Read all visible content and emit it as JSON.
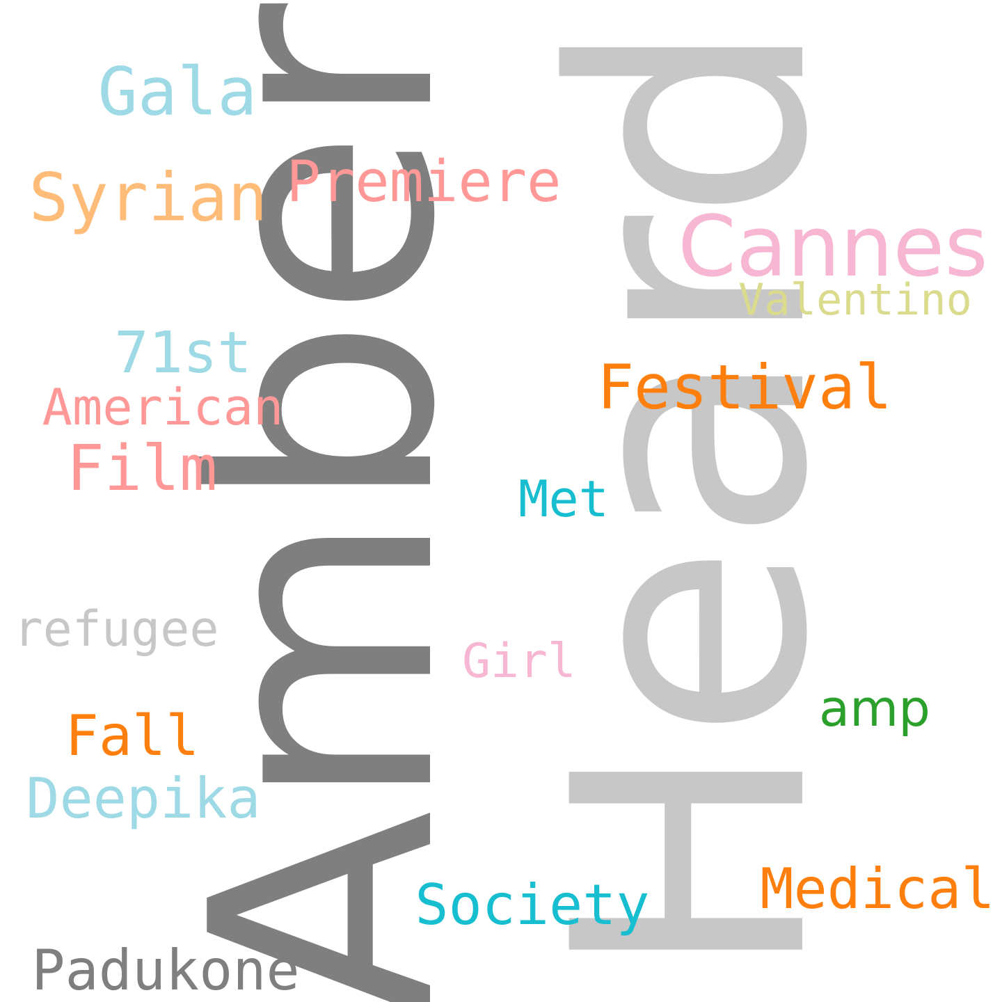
{
  "words": {
    "amber": {
      "text": "Amber",
      "color": "#7f7f7f"
    },
    "heard": {
      "text": "Heard",
      "color": "#c7c7c7"
    },
    "gala": {
      "text": "Gala",
      "color": "#9edae5"
    },
    "syrian": {
      "text": "Syrian",
      "color": "#ffbb78"
    },
    "premiere": {
      "text": "Premiere",
      "color": "#ff9896"
    },
    "cannes": {
      "text": "Cannes",
      "color": "#f7b6d2"
    },
    "valentino": {
      "text": "Valentino",
      "color": "#dbdb8d"
    },
    "seventy_first": {
      "text": "71st",
      "color": "#9edae5"
    },
    "festival": {
      "text": "Festival",
      "color": "#ff7f0e"
    },
    "american": {
      "text": "American",
      "color": "#ff9896"
    },
    "film": {
      "text": "Film",
      "color": "#ff9896"
    },
    "met": {
      "text": "Met",
      "color": "#17becf"
    },
    "refugee": {
      "text": "refugee",
      "color": "#c7c7c7"
    },
    "girl": {
      "text": "Girl",
      "color": "#f7b6d2"
    },
    "amp": {
      "text": "amp",
      "color": "#2ca02c"
    },
    "fall": {
      "text": "Fall",
      "color": "#ff7f0e"
    },
    "deepika": {
      "text": "Deepika",
      "color": "#9edae5"
    },
    "medical": {
      "text": "Medical",
      "color": "#ff7f0e"
    },
    "society": {
      "text": "Society",
      "color": "#17becf"
    },
    "padukone": {
      "text": "Padukone",
      "color": "#7f7f7f"
    }
  }
}
